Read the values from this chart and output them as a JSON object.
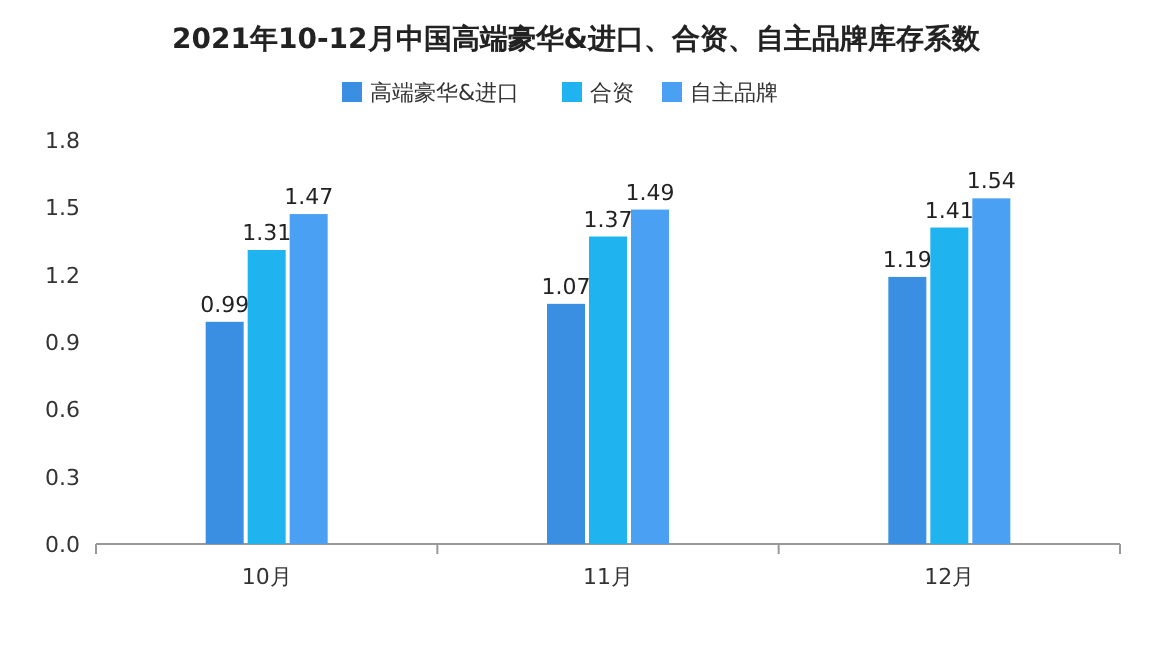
{
  "chart_data": {
    "type": "bar",
    "title": "2021年10-12月中国高端豪华&进口、合资、自主品牌库存系数",
    "categories": [
      "10月",
      "11月",
      "12月"
    ],
    "series": [
      {
        "name": "高端豪华&进口",
        "color": "#3b8fe3",
        "values": [
          0.99,
          1.07,
          1.19
        ]
      },
      {
        "name": "合资",
        "color": "#1fb4ef",
        "values": [
          1.31,
          1.37,
          1.41
        ]
      },
      {
        "name": "自主品牌",
        "color": "#4aa0f2",
        "values": [
          1.47,
          1.49,
          1.54
        ]
      }
    ],
    "ylim": [
      0,
      1.8
    ],
    "yticks": [
      {
        "value": 0,
        "label": "0.0"
      },
      {
        "value": 0.3,
        "label": "0.3"
      },
      {
        "value": 0.6,
        "label": "0.6"
      },
      {
        "value": 0.9,
        "label": "0.9"
      },
      {
        "value": 1.2,
        "label": "1.2"
      },
      {
        "value": 1.5,
        "label": "1.5"
      },
      {
        "value": 1.8,
        "label": "1.8"
      }
    ],
    "data_labels": true,
    "legend": "top",
    "grid": false
  }
}
